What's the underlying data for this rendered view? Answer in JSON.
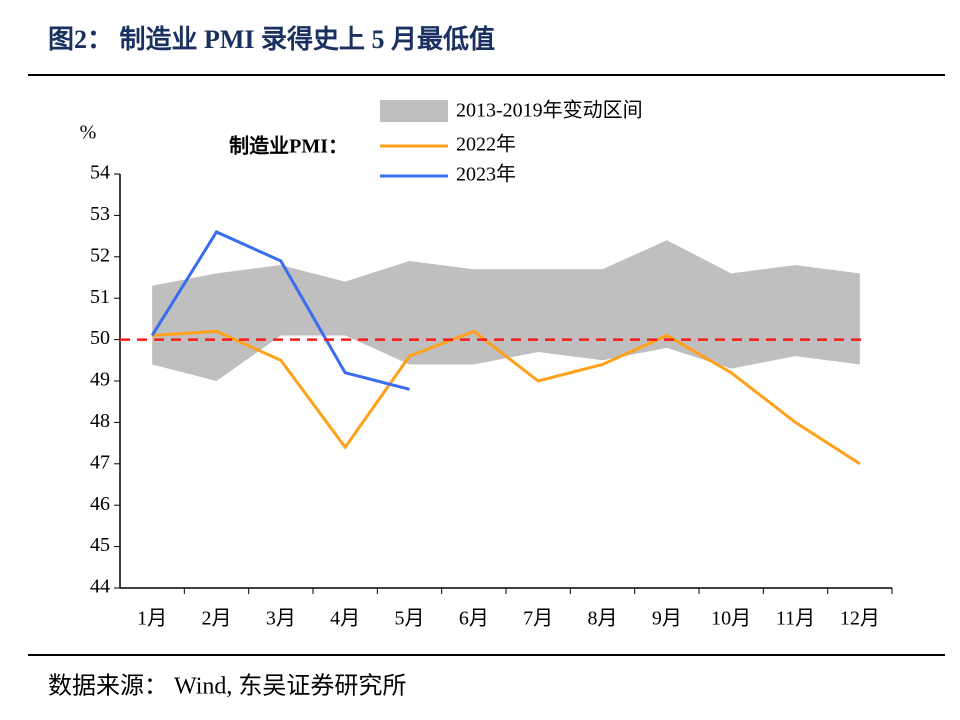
{
  "chart_data": {
    "type": "line",
    "title": "图2： 制造业 PMI 录得史上 5 月最低值",
    "y_label": "%",
    "legend_label": "制造业PMI：",
    "source": "数据来源： Wind, 东吴证券研究所",
    "categories": [
      "1月",
      "2月",
      "3月",
      "4月",
      "5月",
      "6月",
      "7月",
      "8月",
      "9月",
      "10月",
      "11月",
      "12月"
    ],
    "band": {
      "name": "2013-2019年变动区间",
      "color": "#bfbfbf",
      "upper": [
        51.3,
        51.6,
        51.8,
        51.4,
        51.9,
        51.7,
        51.7,
        51.7,
        52.4,
        51.6,
        51.8,
        51.6
      ],
      "lower": [
        49.4,
        49.0,
        50.1,
        50.1,
        49.4,
        49.4,
        49.7,
        49.5,
        49.8,
        49.3,
        49.6,
        49.4
      ]
    },
    "series": [
      {
        "name": "2022年",
        "color": "#ffa11a",
        "values": [
          50.1,
          50.2,
          49.5,
          47.4,
          49.6,
          50.2,
          49.0,
          49.4,
          50.1,
          49.2,
          48.0,
          47.0
        ]
      },
      {
        "name": "2023年",
        "color": "#3a6cf0",
        "values": [
          50.1,
          52.6,
          51.9,
          49.2,
          48.8,
          null,
          null,
          null,
          null,
          null,
          null,
          null
        ]
      }
    ],
    "reference_line": {
      "value": 50,
      "color": "#ff1a1a"
    },
    "ylim": [
      44,
      54
    ],
    "yticks": [
      44,
      45,
      46,
      47,
      48,
      49,
      50,
      51,
      52,
      53,
      54
    ]
  }
}
